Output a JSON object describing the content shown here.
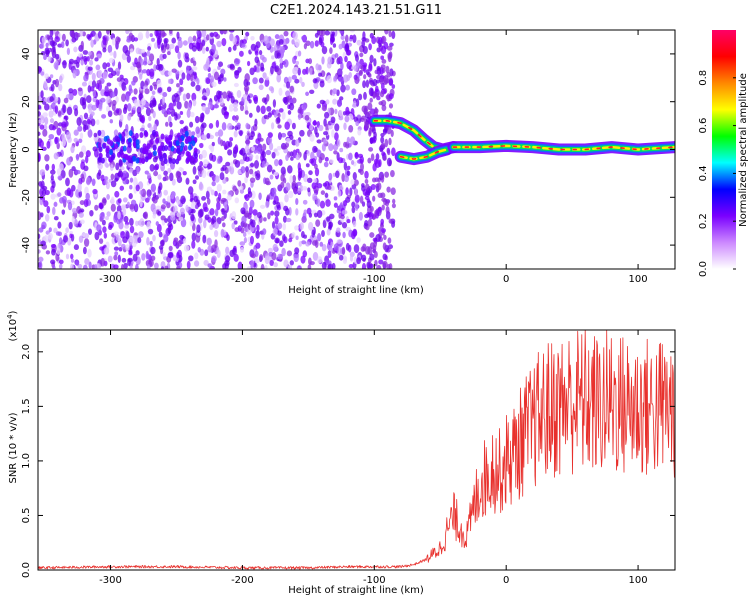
{
  "title": "C2E1.2024.143.21.51.G11",
  "colors": {
    "axis": "#000000",
    "line": "#e8302c",
    "spectrogram_low": "#cc66ff",
    "spectrogram_high": "#ff0000"
  },
  "colorbar": {
    "label": "Normalized spectral amplitude",
    "ticks": [
      "0.0",
      "0.2",
      "0.4",
      "0.6",
      "0.8"
    ],
    "stops": [
      "#ffffff",
      "#cc88ff",
      "#7a00ff",
      "#0000ff",
      "#00ffff",
      "#00ff00",
      "#ffff00",
      "#ff8800",
      "#ff0000",
      "#ff0066"
    ]
  },
  "chart_data": [
    {
      "type": "heatmap",
      "title": "C2E1.2024.143.21.51.G11",
      "xlabel": "Height of straight line (km)",
      "ylabel": "Frequency (Hz)",
      "xlim": [
        -355,
        128
      ],
      "ylim": [
        -50,
        50
      ],
      "xticks": [
        "-300",
        "-200",
        "-100",
        "0",
        "100"
      ],
      "yticks": [
        "-40",
        "-20",
        "0",
        "20",
        "40"
      ],
      "noise_region_x": [
        -355,
        -95
      ],
      "track": {
        "upper_branch": [
          [
            -100,
            12
          ],
          [
            -90,
            12
          ],
          [
            -80,
            11
          ],
          [
            -70,
            8
          ],
          [
            -62,
            4
          ],
          [
            -55,
            1
          ],
          [
            -48,
            0
          ],
          [
            -40,
            1
          ]
        ],
        "lower_branch": [
          [
            -80,
            -3
          ],
          [
            -70,
            -4
          ],
          [
            -60,
            -3
          ],
          [
            -52,
            -1
          ],
          [
            -45,
            0
          ]
        ],
        "main": [
          [
            -40,
            1
          ],
          [
            -20,
            1
          ],
          [
            0,
            1.5
          ],
          [
            20,
            1
          ],
          [
            40,
            0
          ],
          [
            60,
            0
          ],
          [
            80,
            1
          ],
          [
            100,
            0
          ],
          [
            128,
            1
          ]
        ]
      }
    },
    {
      "type": "line",
      "xlabel": "Height of straight line (km)",
      "ylabel": "SNR (10 * v/v)",
      "yscale_label": "(x10",
      "yscale_exp": "4",
      "xlim": [
        -355,
        128
      ],
      "ylim": [
        0,
        2.2
      ],
      "xticks": [
        "-300",
        "-200",
        "-100",
        "0",
        "100"
      ],
      "yticks": [
        "0.0",
        "0.5",
        "1.0",
        "1.5",
        "2.0"
      ],
      "series": [
        {
          "x": [
            -355,
            -300,
            -250,
            -200,
            -150,
            -120,
            -100,
            -80,
            -70,
            -60,
            -55,
            -50,
            -45,
            -40,
            -35,
            -30,
            -25,
            -20,
            -15,
            -10,
            -5,
            0,
            5,
            10,
            15,
            20,
            25,
            30,
            40,
            50,
            60,
            70,
            80,
            90,
            100,
            110,
            120,
            128
          ],
          "y": [
            0.02,
            0.03,
            0.03,
            0.02,
            0.02,
            0.03,
            0.03,
            0.03,
            0.05,
            0.1,
            0.15,
            0.2,
            0.35,
            0.5,
            0.4,
            0.3,
            0.55,
            0.8,
            0.85,
            0.95,
            0.9,
            1.0,
            1.05,
            1.15,
            1.25,
            1.3,
            1.4,
            1.45,
            1.5,
            1.55,
            1.55,
            1.5,
            1.55,
            1.5,
            1.5,
            1.48,
            1.5,
            1.5
          ]
        }
      ]
    }
  ]
}
